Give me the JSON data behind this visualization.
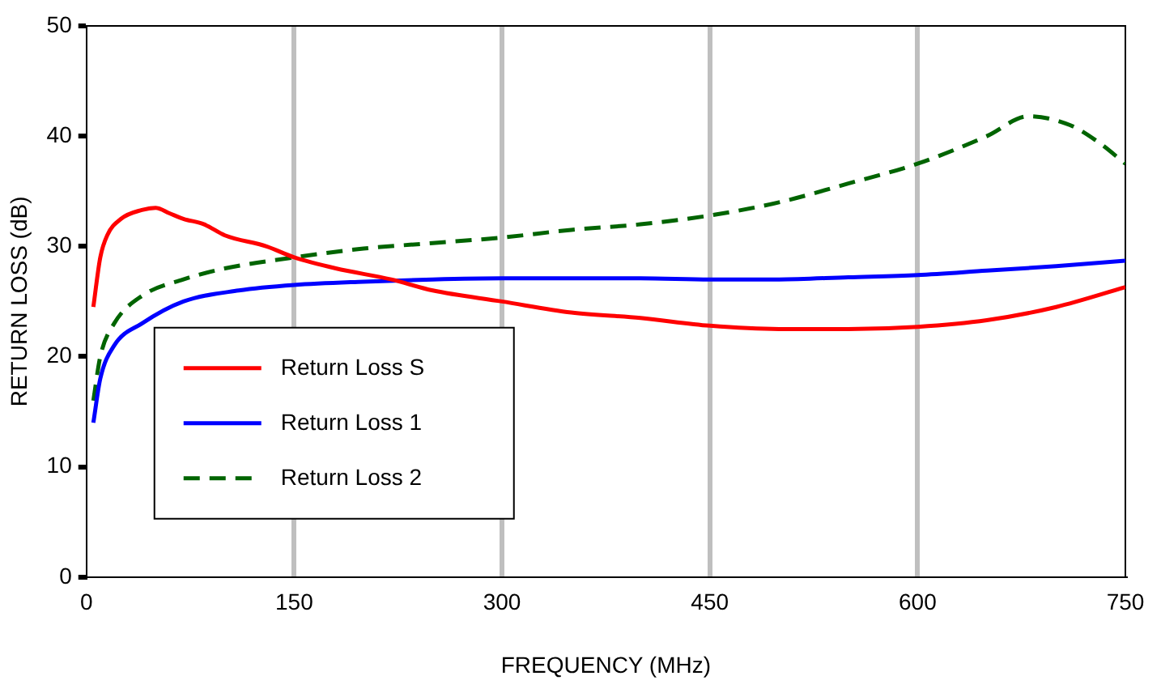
{
  "chart_data": {
    "type": "line",
    "xlabel": "FREQUENCY (MHz)",
    "ylabel": "RETURN LOSS (dB)",
    "xlim": [
      0,
      750
    ],
    "xticks": [
      0,
      150,
      300,
      450,
      600,
      750
    ],
    "ylim": [
      0,
      50
    ],
    "yticks": [
      0,
      10,
      20,
      30,
      40,
      50
    ],
    "grid": "x",
    "legend": "bottom left",
    "marker": "none",
    "series": [
      {
        "name": "Return Loss S",
        "color": "#ff0000",
        "line_style": "solid",
        "x": [
          5,
          10,
          15,
          25,
          40,
          50,
          60,
          70,
          85,
          100,
          130,
          150,
          180,
          220,
          250,
          300,
          350,
          400,
          450,
          500,
          550,
          600,
          650,
          700,
          750
        ],
        "values": [
          24.5,
          29,
          31,
          32.5,
          33.3,
          33.5,
          33,
          32.5,
          32,
          31,
          30,
          29,
          28,
          27,
          26,
          25,
          24,
          23.5,
          22.8,
          22.5,
          22.5,
          22.7,
          23.3,
          24.5,
          26.3
        ]
      },
      {
        "name": "Return Loss 1",
        "color": "#0000ff",
        "line_style": "solid",
        "x": [
          5,
          10,
          20,
          40,
          70,
          110,
          150,
          200,
          250,
          300,
          400,
          450,
          500,
          550,
          600,
          650,
          700,
          750
        ],
        "values": [
          14,
          18,
          21,
          23,
          25,
          26,
          26.5,
          26.8,
          27,
          27.1,
          27.1,
          27,
          27,
          27.2,
          27.4,
          27.8,
          28.2,
          28.7
        ]
      },
      {
        "name": "Return Loss 2",
        "color": "#006400",
        "line_style": "dashed",
        "x": [
          5,
          10,
          20,
          40,
          70,
          100,
          150,
          200,
          250,
          300,
          350,
          400,
          450,
          500,
          550,
          600,
          650,
          680,
          710,
          730,
          750
        ],
        "values": [
          16,
          20,
          23,
          25.5,
          27,
          28,
          29,
          29.8,
          30.3,
          30.8,
          31.5,
          32,
          32.8,
          34,
          35.7,
          37.5,
          40,
          41.8,
          41,
          39.5,
          37.5
        ]
      }
    ]
  }
}
